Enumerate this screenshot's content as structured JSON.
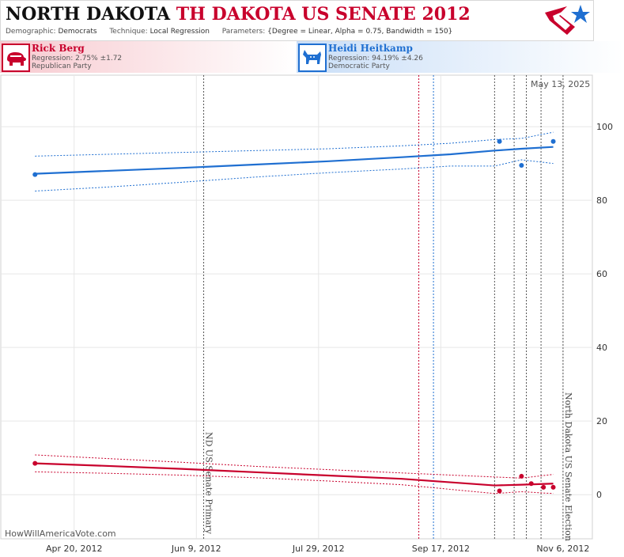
{
  "header": {
    "title_state": "NORTH DAKOTA",
    "title_race": "TH DAKOTA US SENATE 2012",
    "demographic_label": "Demographic:",
    "demographic_value": "Democrats",
    "technique_label": "Technique:",
    "technique_value": "Local Regression",
    "parameters_label": "Parameters:",
    "parameters_value": "{Degree = Linear, Alpha = 0.75, Bandwidth = 150}"
  },
  "candidates": [
    {
      "name": "Rick Berg",
      "regression": "Regression: 2.75% ±1.72",
      "party": "Republican Party",
      "color": "#c8002c"
    },
    {
      "name": "Heidi Heitkamp",
      "regression": "Regression: 94.19% ±4.26",
      "party": "Democratic Party",
      "color": "#1f6fd1"
    }
  ],
  "date_stamp": "May 13, 2025",
  "watermark": "HowWillAmericaVote.com",
  "chart_data": {
    "type": "line",
    "ylim": [
      -12,
      114
    ],
    "y_ticks": [
      0,
      20,
      40,
      60,
      80,
      100
    ],
    "x_range": [
      "2012-03-21",
      "2012-11-18"
    ],
    "x_ticks": [
      {
        "date": "2012-04-20",
        "label": "Apr 20, 2012"
      },
      {
        "date": "2012-06-09",
        "label": "Jun 9, 2012"
      },
      {
        "date": "2012-07-29",
        "label": "Jul 29, 2012"
      },
      {
        "date": "2012-09-17",
        "label": "Sep 17, 2012"
      },
      {
        "date": "2012-11-06",
        "label": "Nov 6, 2012"
      }
    ],
    "events": [
      {
        "date": "2012-06-12",
        "label": "ND US Senate Primary"
      },
      {
        "date": "2012-11-06",
        "label": "North Dakota US Senate Election"
      }
    ],
    "poll_lines": [
      {
        "date": "2012-09-08",
        "color": "#c8002c"
      },
      {
        "date": "2012-09-14",
        "color": "#1f6fd1"
      },
      {
        "date": "2012-10-09",
        "color": "#555555"
      },
      {
        "date": "2012-10-17",
        "color": "#555555"
      },
      {
        "date": "2012-10-22",
        "color": "#555555"
      },
      {
        "date": "2012-10-28",
        "color": "#555555"
      }
    ],
    "series": [
      {
        "name": "Heidi Heitkamp",
        "color": "#1f6fd1",
        "points": [
          {
            "x": "2012-04-04",
            "y": 87.0
          },
          {
            "x": "2012-10-11",
            "y": 96.0
          },
          {
            "x": "2012-10-20",
            "y": 89.5
          },
          {
            "x": "2012-11-02",
            "y": 96.0
          }
        ],
        "trend": [
          {
            "x": "2012-04-04",
            "y": 87.2,
            "lo": 82.5,
            "hi": 92.0
          },
          {
            "x": "2012-05-04",
            "y": 88.0,
            "lo": 83.6,
            "hi": 92.5
          },
          {
            "x": "2012-06-03",
            "y": 88.8,
            "lo": 84.9,
            "hi": 93.0
          },
          {
            "x": "2012-07-03",
            "y": 89.7,
            "lo": 86.3,
            "hi": 93.5
          },
          {
            "x": "2012-08-02",
            "y": 90.6,
            "lo": 87.5,
            "hi": 94.0
          },
          {
            "x": "2012-09-01",
            "y": 91.7,
            "lo": 88.5,
            "hi": 94.8
          },
          {
            "x": "2012-09-21",
            "y": 92.5,
            "lo": 89.3,
            "hi": 95.5
          },
          {
            "x": "2012-10-09",
            "y": 93.5,
            "lo": 89.3,
            "hi": 96.5
          },
          {
            "x": "2012-10-20",
            "y": 94.0,
            "lo": 91.0,
            "hi": 96.8
          },
          {
            "x": "2012-11-02",
            "y": 94.5,
            "lo": 90.0,
            "hi": 98.5
          }
        ]
      },
      {
        "name": "Rick Berg",
        "color": "#c8002c",
        "points": [
          {
            "x": "2012-04-04",
            "y": 8.5
          },
          {
            "x": "2012-10-11",
            "y": 1.0
          },
          {
            "x": "2012-10-20",
            "y": 5.0
          },
          {
            "x": "2012-10-24",
            "y": 3.0
          },
          {
            "x": "2012-10-29",
            "y": 2.0
          },
          {
            "x": "2012-11-02",
            "y": 2.0
          }
        ],
        "trend": [
          {
            "x": "2012-04-04",
            "y": 8.5,
            "lo": 6.2,
            "hi": 10.8
          },
          {
            "x": "2012-05-04",
            "y": 7.8,
            "lo": 5.8,
            "hi": 9.8
          },
          {
            "x": "2012-06-03",
            "y": 7.0,
            "lo": 5.3,
            "hi": 8.8
          },
          {
            "x": "2012-07-03",
            "y": 6.1,
            "lo": 4.6,
            "hi": 7.7
          },
          {
            "x": "2012-08-02",
            "y": 5.2,
            "lo": 3.7,
            "hi": 6.8
          },
          {
            "x": "2012-09-01",
            "y": 4.3,
            "lo": 2.7,
            "hi": 5.9
          },
          {
            "x": "2012-10-09",
            "y": 2.5,
            "lo": 0.3,
            "hi": 4.8
          },
          {
            "x": "2012-10-20",
            "y": 2.7,
            "lo": 0.8,
            "hi": 4.5
          },
          {
            "x": "2012-11-02",
            "y": 3.0,
            "lo": 0.3,
            "hi": 5.5
          }
        ]
      }
    ]
  }
}
